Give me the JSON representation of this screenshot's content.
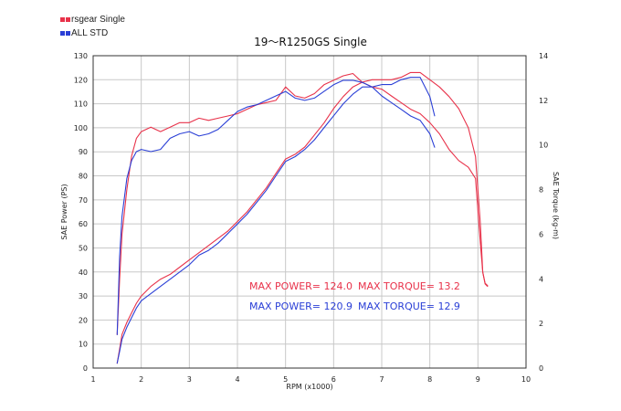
{
  "chart_data": {
    "type": "line",
    "title": "19～R1250GS Single",
    "xlabel": "RPM (x1000)",
    "ylabel_left": "SAE Power (PS)",
    "ylabel_right": "SAE Torque (kg-m)",
    "xlim": [
      1,
      10
    ],
    "ylim_left": [
      0,
      130
    ],
    "ylim_right": [
      0,
      14
    ],
    "x_ticks": [
      "1",
      "2",
      "3",
      "4",
      "5",
      "6",
      "7",
      "8",
      "9",
      "10"
    ],
    "y_ticks_left": [
      "0",
      "10",
      "20",
      "30",
      "40",
      "50",
      "60",
      "70",
      "80",
      "90",
      "100",
      "110",
      "120",
      "130"
    ],
    "y_ticks_right": [
      "0",
      "2",
      "4",
      "6",
      "8",
      "10",
      "12",
      "14"
    ],
    "grid": true,
    "legend_position": "top-left",
    "legend": [
      {
        "name": "rsgear Single",
        "color": "#e8324a"
      },
      {
        "name": "ALL STD",
        "color": "#2a3fd6"
      }
    ],
    "annotations": [
      {
        "text": "MAX POWER= 124.0",
        "color": "#e8324a"
      },
      {
        "text": "MAX TORQUE= 13.2",
        "color": "#e8324a"
      },
      {
        "text": "MAX POWER= 120.9",
        "color": "#2a3fd6"
      },
      {
        "text": "MAX TORQUE= 12.9",
        "color": "#2a3fd6"
      }
    ],
    "series": [
      {
        "name": "rsgear Single",
        "kind": "power",
        "axis": "left",
        "color": "#e8324a",
        "x": [
          1.5,
          1.55,
          1.6,
          1.7,
          1.8,
          1.9,
          2.0,
          2.2,
          2.4,
          2.6,
          2.8,
          3.0,
          3.2,
          3.4,
          3.6,
          3.8,
          4.0,
          4.2,
          4.4,
          4.6,
          4.8,
          5.0,
          5.2,
          5.4,
          5.6,
          5.8,
          6.0,
          6.2,
          6.4,
          6.6,
          6.8,
          7.0,
          7.2,
          7.4,
          7.6,
          7.8,
          8.0,
          8.2,
          8.4,
          8.6,
          8.8,
          8.95,
          9.05,
          9.1,
          9.15,
          9.2
        ],
        "y": [
          2,
          8,
          14,
          19,
          23,
          27,
          30,
          34,
          37,
          39,
          42,
          45,
          48,
          51,
          54,
          57,
          61,
          65,
          70,
          75,
          81,
          87,
          89,
          92,
          97,
          102,
          108,
          113,
          117,
          119,
          120,
          120,
          120,
          121,
          123,
          123,
          120,
          117,
          113,
          108,
          100,
          88,
          60,
          40,
          35,
          34
        ]
      },
      {
        "name": "ALL STD",
        "kind": "power",
        "axis": "left",
        "color": "#2a3fd6",
        "x": [
          1.5,
          1.55,
          1.6,
          1.7,
          1.8,
          1.9,
          2.0,
          2.2,
          2.4,
          2.6,
          2.8,
          3.0,
          3.2,
          3.4,
          3.6,
          3.8,
          4.0,
          4.2,
          4.4,
          4.6,
          4.8,
          5.0,
          5.2,
          5.4,
          5.6,
          5.8,
          6.0,
          6.2,
          6.4,
          6.6,
          6.8,
          7.0,
          7.2,
          7.4,
          7.6,
          7.8,
          8.0,
          8.1
        ],
        "y": [
          2,
          7,
          12,
          17,
          21,
          25,
          28,
          31,
          34,
          37,
          40,
          43,
          47,
          49,
          52,
          56,
          60,
          64,
          69,
          74,
          80,
          86,
          88,
          91,
          95,
          100,
          105,
          110,
          114,
          117,
          117,
          118,
          118,
          120,
          121,
          121,
          113,
          105
        ]
      },
      {
        "name": "rsgear Single",
        "kind": "torque",
        "axis": "right",
        "color": "#e8324a",
        "x": [
          1.5,
          1.55,
          1.6,
          1.7,
          1.8,
          1.9,
          2.0,
          2.2,
          2.4,
          2.6,
          2.8,
          3.0,
          3.2,
          3.4,
          3.6,
          3.8,
          4.0,
          4.2,
          4.4,
          4.6,
          4.8,
          5.0,
          5.2,
          5.4,
          5.6,
          5.8,
          6.0,
          6.2,
          6.4,
          6.6,
          6.8,
          7.0,
          7.2,
          7.4,
          7.6,
          7.8,
          8.0,
          8.2,
          8.4,
          8.6,
          8.8,
          8.95,
          9.05,
          9.1,
          9.15,
          9.2
        ],
        "y": [
          1.5,
          4.0,
          6.0,
          8.0,
          9.5,
          10.3,
          10.6,
          10.8,
          10.6,
          10.8,
          11.0,
          11.0,
          11.2,
          11.1,
          11.2,
          11.3,
          11.4,
          11.6,
          11.8,
          11.9,
          12.0,
          12.6,
          12.2,
          12.1,
          12.3,
          12.7,
          12.9,
          13.1,
          13.2,
          12.8,
          12.6,
          12.5,
          12.2,
          11.9,
          11.6,
          11.4,
          11.0,
          10.5,
          9.8,
          9.3,
          9.0,
          8.5,
          5.6,
          4.3,
          3.8,
          3.7
        ]
      },
      {
        "name": "ALL STD",
        "kind": "torque",
        "axis": "right",
        "color": "#2a3fd6",
        "x": [
          1.5,
          1.55,
          1.6,
          1.7,
          1.8,
          1.9,
          2.0,
          2.2,
          2.4,
          2.6,
          2.8,
          3.0,
          3.2,
          3.4,
          3.6,
          3.8,
          4.0,
          4.2,
          4.4,
          4.6,
          4.8,
          5.0,
          5.2,
          5.4,
          5.6,
          5.8,
          6.0,
          6.2,
          6.4,
          6.6,
          6.8,
          7.0,
          7.2,
          7.4,
          7.6,
          7.8,
          8.0,
          8.1
        ],
        "y": [
          1.5,
          5.0,
          6.8,
          8.5,
          9.3,
          9.7,
          9.8,
          9.7,
          9.8,
          10.3,
          10.5,
          10.6,
          10.4,
          10.5,
          10.7,
          11.1,
          11.5,
          11.7,
          11.8,
          12.0,
          12.2,
          12.4,
          12.1,
          12.0,
          12.1,
          12.4,
          12.7,
          12.9,
          12.9,
          12.8,
          12.6,
          12.2,
          11.9,
          11.6,
          11.3,
          11.1,
          10.5,
          9.9
        ]
      }
    ]
  }
}
